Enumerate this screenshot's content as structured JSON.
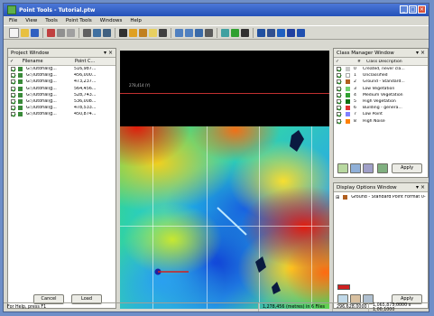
{
  "window": {
    "title": "Point Tools - Tutorial.ptw"
  },
  "menu": [
    "File",
    "View",
    "Tools",
    "Point Tools",
    "Windows",
    "Help"
  ],
  "project_window": {
    "title": "Project Window",
    "columns": [
      "Filename",
      "Point C..."
    ],
    "files": [
      {
        "name": "G:\\Tutorial\\g...",
        "count": "516,987..."
      },
      {
        "name": "G:\\Tutorial\\g...",
        "count": "456,000..."
      },
      {
        "name": "G:\\Tutorial\\g...",
        "count": "473,237..."
      },
      {
        "name": "G:\\Tutorial\\g...",
        "count": "564,456..."
      },
      {
        "name": "G:\\Tutorial\\g...",
        "count": "528,743..."
      },
      {
        "name": "G:\\Tutorial\\g...",
        "count": "536,008..."
      },
      {
        "name": "G:\\Tutorial\\g...",
        "count": "478,533..."
      },
      {
        "name": "G:\\Tutorial\\g...",
        "count": "450,874..."
      }
    ],
    "cancel_label": "Cancel",
    "load_label": "Load"
  },
  "map": {
    "label": "278,414 (Y)"
  },
  "class_manager": {
    "title": "Class Manager Window",
    "columns": [
      "#",
      "Class Description"
    ],
    "classes": [
      {
        "id": "0",
        "name": "Created, never cla...",
        "color": "#c8c8c8"
      },
      {
        "id": "1",
        "name": "Unclassified",
        "color": "#ffffff"
      },
      {
        "id": "2",
        "name": "Ground - Standard...",
        "color": "#b06020"
      },
      {
        "id": "3",
        "name": "Low Vegetation",
        "color": "#70d070"
      },
      {
        "id": "4",
        "name": "Medium Vegetation",
        "color": "#30a030"
      },
      {
        "id": "5",
        "name": "High Vegetation",
        "color": "#107010"
      },
      {
        "id": "6",
        "name": "Building - genera...",
        "color": "#e03030"
      },
      {
        "id": "7",
        "name": "Low Point",
        "color": "#8080ff"
      },
      {
        "id": "8",
        "name": "High Noise",
        "color": "#ff8000"
      }
    ],
    "apply_label": "Apply"
  },
  "display_options": {
    "title": "Display Options Window",
    "item": "Ground - Standard Point Format 0-5",
    "apply_label": "Apply"
  },
  "status": {
    "left": "For Help, press F1",
    "coords": "1,278,456 (metres) in 6 Files",
    "zoom": "296,628,0000",
    "extent": "1,065,875,0000 x 1,00,1000"
  },
  "colors": {
    "accent": "#2451b8",
    "panel_bg": "#d8d8d0"
  }
}
